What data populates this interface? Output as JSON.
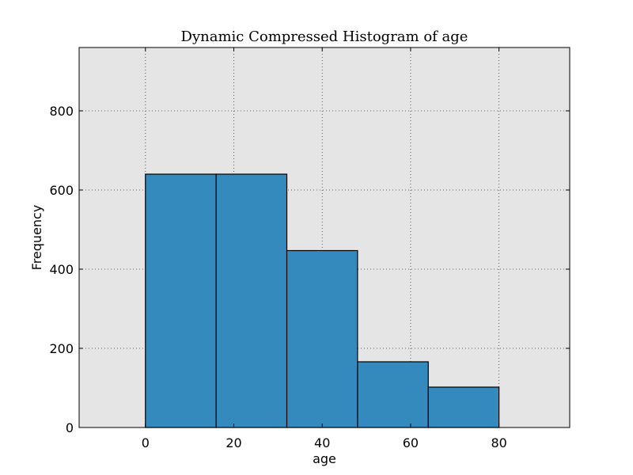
{
  "chart_data": {
    "type": "bar",
    "title": "Dynamic Compressed Histogram of age",
    "xlabel": "age",
    "ylabel": "Frequency",
    "xlim": [
      -15,
      96
    ],
    "ylim": [
      0,
      960
    ],
    "grid": true,
    "x_ticks": [
      0,
      20,
      40,
      60,
      80
    ],
    "y_ticks": [
      0,
      200,
      400,
      600,
      800
    ],
    "bins": [
      {
        "start": 0,
        "end": 16,
        "value": 640
      },
      {
        "start": 16,
        "end": 32,
        "value": 640
      },
      {
        "start": 32,
        "end": 48,
        "value": 447
      },
      {
        "start": 48,
        "end": 64,
        "value": 166
      },
      {
        "start": 64,
        "end": 80,
        "value": 102
      }
    ],
    "colors": {
      "bar": "#348abd",
      "background": "#e5e5e5"
    }
  }
}
